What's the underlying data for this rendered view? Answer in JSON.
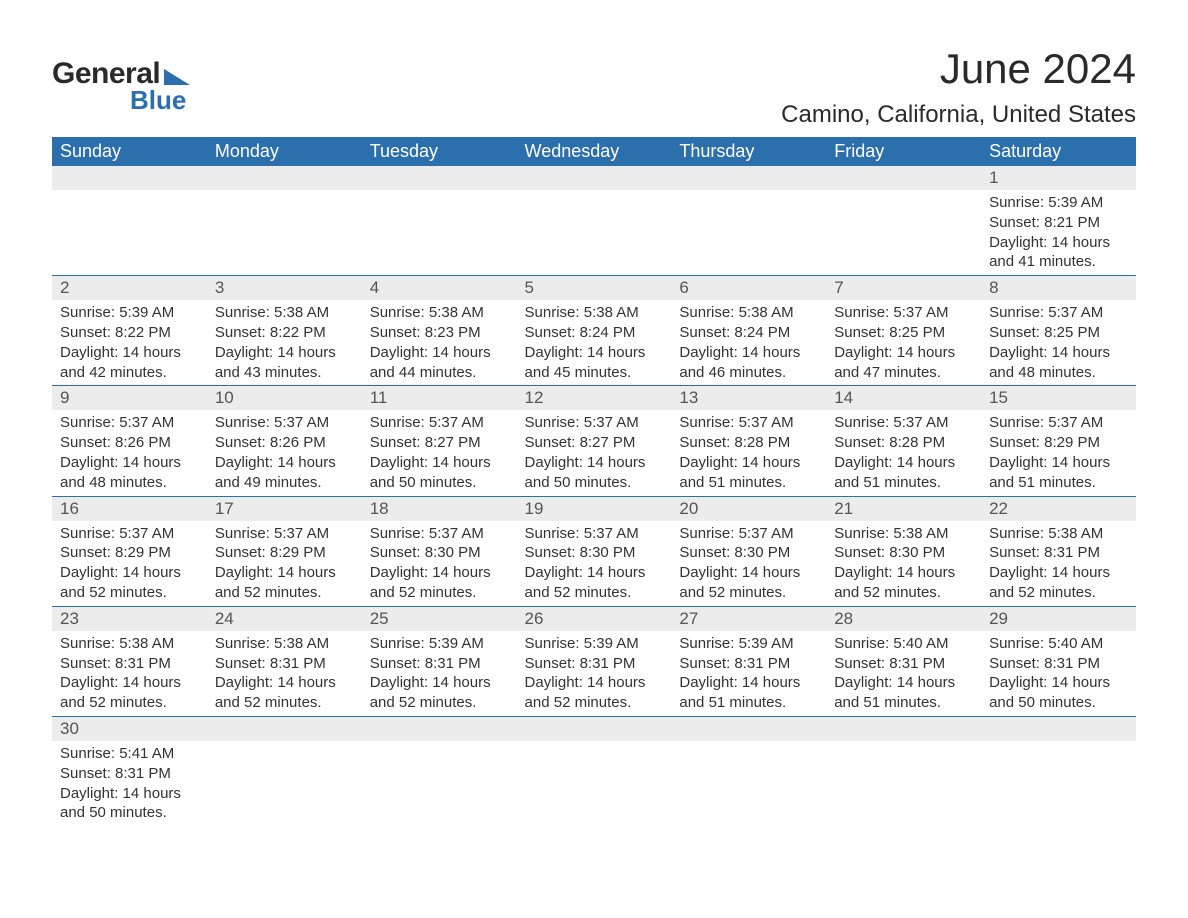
{
  "logo": {
    "text1": "General",
    "text2": "Blue",
    "accent": "#2c6fad",
    "text_color": "#2a2a2a"
  },
  "title": "June 2024",
  "location": "Camino, California, United States",
  "colors": {
    "header_bg": "#2c6fad",
    "header_text": "#ffffff",
    "daynum_bg": "#ececec",
    "daynum_text": "#555555",
    "body_text": "#333333",
    "row_border": "#2c6fad",
    "page_bg": "#ffffff"
  },
  "fonts": {
    "title_size_pt": 32,
    "location_size_pt": 18,
    "header_size_pt": 14,
    "body_size_pt": 11
  },
  "calendar": {
    "type": "table",
    "columns": [
      "Sunday",
      "Monday",
      "Tuesday",
      "Wednesday",
      "Thursday",
      "Friday",
      "Saturday"
    ],
    "weeks": [
      [
        null,
        null,
        null,
        null,
        null,
        null,
        {
          "n": "1",
          "sunrise": "5:39 AM",
          "sunset": "8:21 PM",
          "daylight": "14 hours and 41 minutes."
        }
      ],
      [
        {
          "n": "2",
          "sunrise": "5:39 AM",
          "sunset": "8:22 PM",
          "daylight": "14 hours and 42 minutes."
        },
        {
          "n": "3",
          "sunrise": "5:38 AM",
          "sunset": "8:22 PM",
          "daylight": "14 hours and 43 minutes."
        },
        {
          "n": "4",
          "sunrise": "5:38 AM",
          "sunset": "8:23 PM",
          "daylight": "14 hours and 44 minutes."
        },
        {
          "n": "5",
          "sunrise": "5:38 AM",
          "sunset": "8:24 PM",
          "daylight": "14 hours and 45 minutes."
        },
        {
          "n": "6",
          "sunrise": "5:38 AM",
          "sunset": "8:24 PM",
          "daylight": "14 hours and 46 minutes."
        },
        {
          "n": "7",
          "sunrise": "5:37 AM",
          "sunset": "8:25 PM",
          "daylight": "14 hours and 47 minutes."
        },
        {
          "n": "8",
          "sunrise": "5:37 AM",
          "sunset": "8:25 PM",
          "daylight": "14 hours and 48 minutes."
        }
      ],
      [
        {
          "n": "9",
          "sunrise": "5:37 AM",
          "sunset": "8:26 PM",
          "daylight": "14 hours and 48 minutes."
        },
        {
          "n": "10",
          "sunrise": "5:37 AM",
          "sunset": "8:26 PM",
          "daylight": "14 hours and 49 minutes."
        },
        {
          "n": "11",
          "sunrise": "5:37 AM",
          "sunset": "8:27 PM",
          "daylight": "14 hours and 50 minutes."
        },
        {
          "n": "12",
          "sunrise": "5:37 AM",
          "sunset": "8:27 PM",
          "daylight": "14 hours and 50 minutes."
        },
        {
          "n": "13",
          "sunrise": "5:37 AM",
          "sunset": "8:28 PM",
          "daylight": "14 hours and 51 minutes."
        },
        {
          "n": "14",
          "sunrise": "5:37 AM",
          "sunset": "8:28 PM",
          "daylight": "14 hours and 51 minutes."
        },
        {
          "n": "15",
          "sunrise": "5:37 AM",
          "sunset": "8:29 PM",
          "daylight": "14 hours and 51 minutes."
        }
      ],
      [
        {
          "n": "16",
          "sunrise": "5:37 AM",
          "sunset": "8:29 PM",
          "daylight": "14 hours and 52 minutes."
        },
        {
          "n": "17",
          "sunrise": "5:37 AM",
          "sunset": "8:29 PM",
          "daylight": "14 hours and 52 minutes."
        },
        {
          "n": "18",
          "sunrise": "5:37 AM",
          "sunset": "8:30 PM",
          "daylight": "14 hours and 52 minutes."
        },
        {
          "n": "19",
          "sunrise": "5:37 AM",
          "sunset": "8:30 PM",
          "daylight": "14 hours and 52 minutes."
        },
        {
          "n": "20",
          "sunrise": "5:37 AM",
          "sunset": "8:30 PM",
          "daylight": "14 hours and 52 minutes."
        },
        {
          "n": "21",
          "sunrise": "5:38 AM",
          "sunset": "8:30 PM",
          "daylight": "14 hours and 52 minutes."
        },
        {
          "n": "22",
          "sunrise": "5:38 AM",
          "sunset": "8:31 PM",
          "daylight": "14 hours and 52 minutes."
        }
      ],
      [
        {
          "n": "23",
          "sunrise": "5:38 AM",
          "sunset": "8:31 PM",
          "daylight": "14 hours and 52 minutes."
        },
        {
          "n": "24",
          "sunrise": "5:38 AM",
          "sunset": "8:31 PM",
          "daylight": "14 hours and 52 minutes."
        },
        {
          "n": "25",
          "sunrise": "5:39 AM",
          "sunset": "8:31 PM",
          "daylight": "14 hours and 52 minutes."
        },
        {
          "n": "26",
          "sunrise": "5:39 AM",
          "sunset": "8:31 PM",
          "daylight": "14 hours and 52 minutes."
        },
        {
          "n": "27",
          "sunrise": "5:39 AM",
          "sunset": "8:31 PM",
          "daylight": "14 hours and 51 minutes."
        },
        {
          "n": "28",
          "sunrise": "5:40 AM",
          "sunset": "8:31 PM",
          "daylight": "14 hours and 51 minutes."
        },
        {
          "n": "29",
          "sunrise": "5:40 AM",
          "sunset": "8:31 PM",
          "daylight": "14 hours and 50 minutes."
        }
      ],
      [
        {
          "n": "30",
          "sunrise": "5:41 AM",
          "sunset": "8:31 PM",
          "daylight": "14 hours and 50 minutes."
        },
        null,
        null,
        null,
        null,
        null,
        null
      ]
    ]
  },
  "labels": {
    "sunrise": "Sunrise: ",
    "sunset": "Sunset: ",
    "daylight": "Daylight: "
  }
}
